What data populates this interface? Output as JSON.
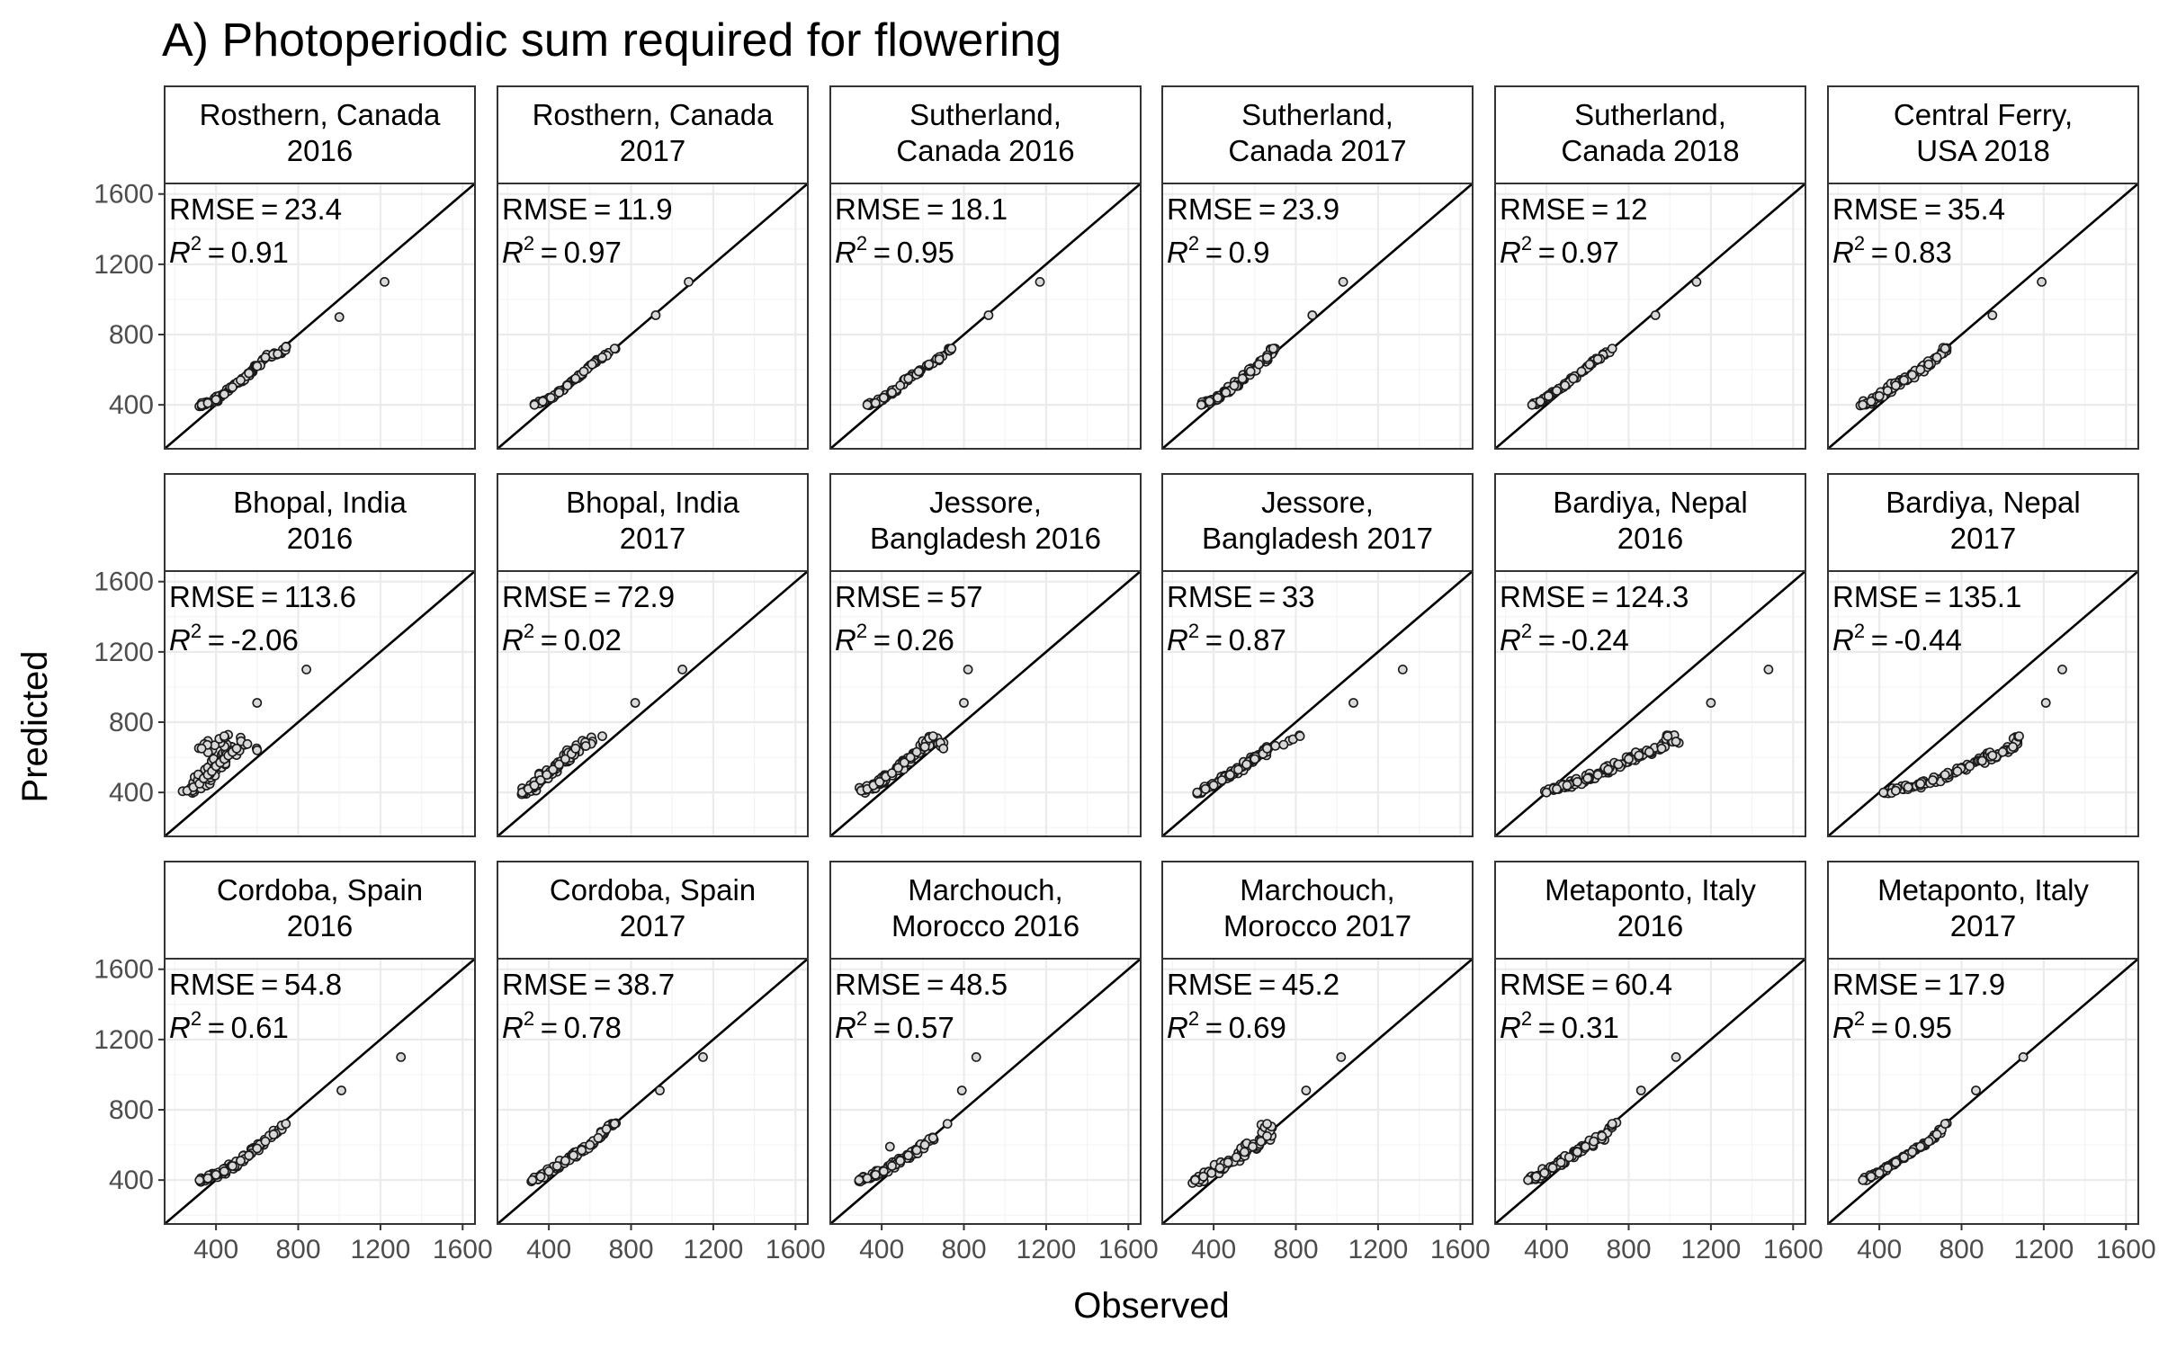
{
  "chart_data": {
    "type": "scatter",
    "title": "A) Photoperiodic sum required for flowering",
    "xlabel": "Observed",
    "ylabel": "Predicted",
    "xlim": [
      150,
      1660
    ],
    "ylim": [
      150,
      1660
    ],
    "x_ticks": [
      400,
      800,
      1200,
      1600
    ],
    "y_ticks": [
      400,
      800,
      1200,
      1600
    ],
    "x_tick_labels": [
      "400",
      "800",
      "1200",
      "1600"
    ],
    "y_tick_labels": [
      "400",
      "800",
      "1200",
      "1600"
    ],
    "rmse_label": "RMSE",
    "r2_label": "R",
    "r2_superscript": "2",
    "grid": true,
    "reference_line": "y = x",
    "panels": [
      {
        "strip": [
          "Rosthern, Canada",
          "2016"
        ],
        "rmse": "23.4",
        "r2": "0.91",
        "spread": 25,
        "points": [
          [
            330,
            400
          ],
          [
            360,
            410
          ],
          [
            400,
            430
          ],
          [
            440,
            460
          ],
          [
            480,
            500
          ],
          [
            520,
            540
          ],
          [
            560,
            580
          ],
          [
            600,
            620
          ],
          [
            640,
            670
          ],
          [
            700,
            690
          ],
          [
            740,
            730
          ],
          [
            1000,
            900
          ],
          [
            1220,
            1100
          ]
        ]
      },
      {
        "strip": [
          "Rosthern, Canada",
          "2017"
        ],
        "rmse": "11.9",
        "r2": "0.97",
        "spread": 14,
        "points": [
          [
            330,
            400
          ],
          [
            370,
            420
          ],
          [
            410,
            440
          ],
          [
            450,
            470
          ],
          [
            490,
            510
          ],
          [
            530,
            550
          ],
          [
            570,
            590
          ],
          [
            610,
            630
          ],
          [
            660,
            670
          ],
          [
            720,
            720
          ],
          [
            920,
            910
          ],
          [
            1080,
            1100
          ]
        ]
      },
      {
        "strip": [
          "Sutherland,",
          "Canada 2016"
        ],
        "rmse": "18.1",
        "r2": "0.95",
        "spread": 20,
        "points": [
          [
            330,
            400
          ],
          [
            370,
            410
          ],
          [
            410,
            440
          ],
          [
            450,
            470
          ],
          [
            490,
            510
          ],
          [
            530,
            550
          ],
          [
            580,
            590
          ],
          [
            630,
            630
          ],
          [
            680,
            660
          ],
          [
            740,
            720
          ],
          [
            920,
            910
          ],
          [
            1170,
            1100
          ]
        ]
      },
      {
        "strip": [
          "Sutherland,",
          "Canada 2017"
        ],
        "rmse": "23.9",
        "r2": "0.9",
        "spread": 30,
        "points": [
          [
            340,
            400
          ],
          [
            380,
            420
          ],
          [
            420,
            440
          ],
          [
            460,
            470
          ],
          [
            500,
            510
          ],
          [
            540,
            550
          ],
          [
            580,
            590
          ],
          [
            620,
            630
          ],
          [
            660,
            670
          ],
          [
            690,
            720
          ],
          [
            880,
            910
          ],
          [
            1030,
            1100
          ]
        ]
      },
      {
        "strip": [
          "Sutherland,",
          "Canada 2018"
        ],
        "rmse": "12",
        "r2": "0.97",
        "spread": 18,
        "points": [
          [
            330,
            400
          ],
          [
            370,
            420
          ],
          [
            410,
            450
          ],
          [
            450,
            480
          ],
          [
            490,
            510
          ],
          [
            530,
            550
          ],
          [
            570,
            590
          ],
          [
            610,
            630
          ],
          [
            650,
            660
          ],
          [
            720,
            720
          ],
          [
            930,
            910
          ],
          [
            1130,
            1100
          ]
        ]
      },
      {
        "strip": [
          "Central Ferry,",
          "USA 2018"
        ],
        "rmse": "35.4",
        "r2": "0.83",
        "spread": 40,
        "points": [
          [
            320,
            400
          ],
          [
            360,
            420
          ],
          [
            400,
            450
          ],
          [
            440,
            480
          ],
          [
            480,
            510
          ],
          [
            520,
            540
          ],
          [
            560,
            570
          ],
          [
            600,
            600
          ],
          [
            640,
            630
          ],
          [
            680,
            670
          ],
          [
            720,
            720
          ],
          [
            950,
            910
          ],
          [
            1190,
            1100
          ]
        ]
      },
      {
        "strip": [
          "Bhopal, India",
          "2016"
        ],
        "rmse": "113.6",
        "r2": "-2.06",
        "spread": 70,
        "points": [
          [
            260,
            410
          ],
          [
            290,
            430
          ],
          [
            320,
            450
          ],
          [
            340,
            480
          ],
          [
            360,
            500
          ],
          [
            380,
            520
          ],
          [
            400,
            550
          ],
          [
            420,
            570
          ],
          [
            440,
            590
          ],
          [
            460,
            610
          ],
          [
            480,
            630
          ],
          [
            500,
            650
          ],
          [
            330,
            650
          ],
          [
            440,
            720
          ],
          [
            600,
            640
          ],
          [
            600,
            910
          ],
          [
            840,
            1100
          ]
        ]
      },
      {
        "strip": [
          "Bhopal, India",
          "2017"
        ],
        "rmse": "72.9",
        "r2": "0.02",
        "spread": 55,
        "points": [
          [
            270,
            400
          ],
          [
            300,
            420
          ],
          [
            330,
            440
          ],
          [
            360,
            470
          ],
          [
            390,
            500
          ],
          [
            420,
            530
          ],
          [
            450,
            560
          ],
          [
            480,
            590
          ],
          [
            510,
            620
          ],
          [
            530,
            650
          ],
          [
            660,
            720
          ],
          [
            820,
            910
          ],
          [
            1050,
            1100
          ]
        ]
      },
      {
        "strip": [
          "Jessore,",
          "Bangladesh 2016"
        ],
        "rmse": "57",
        "r2": "0.26",
        "spread": 45,
        "points": [
          [
            300,
            410
          ],
          [
            330,
            420
          ],
          [
            360,
            440
          ],
          [
            390,
            460
          ],
          [
            420,
            490
          ],
          [
            450,
            510
          ],
          [
            480,
            540
          ],
          [
            510,
            570
          ],
          [
            540,
            600
          ],
          [
            570,
            630
          ],
          [
            610,
            660
          ],
          [
            650,
            720
          ],
          [
            700,
            650
          ],
          [
            800,
            910
          ],
          [
            820,
            1100
          ]
        ]
      },
      {
        "strip": [
          "Jessore,",
          "Bangladesh 2017"
        ],
        "rmse": "33",
        "r2": "0.87",
        "spread": 35,
        "points": [
          [
            320,
            400
          ],
          [
            360,
            420
          ],
          [
            400,
            440
          ],
          [
            440,
            470
          ],
          [
            480,
            500
          ],
          [
            520,
            530
          ],
          [
            560,
            560
          ],
          [
            600,
            590
          ],
          [
            640,
            620
          ],
          [
            660,
            650
          ],
          [
            820,
            720
          ],
          [
            1080,
            910
          ],
          [
            1320,
            1100
          ]
        ]
      },
      {
        "strip": [
          "Bardiya, Nepal",
          "2016"
        ],
        "rmse": "124.3",
        "r2": "-0.24",
        "spread": 45,
        "points": [
          [
            400,
            400
          ],
          [
            450,
            420
          ],
          [
            500,
            440
          ],
          [
            550,
            460
          ],
          [
            600,
            480
          ],
          [
            650,
            500
          ],
          [
            700,
            530
          ],
          [
            750,
            560
          ],
          [
            800,
            590
          ],
          [
            850,
            610
          ],
          [
            900,
            630
          ],
          [
            960,
            650
          ],
          [
            990,
            720
          ],
          [
            1030,
            690
          ],
          [
            1200,
            910
          ],
          [
            1480,
            1100
          ]
        ]
      },
      {
        "strip": [
          "Bardiya, Nepal",
          "2017"
        ],
        "rmse": "135.1",
        "r2": "-0.44",
        "spread": 45,
        "points": [
          [
            420,
            400
          ],
          [
            480,
            410
          ],
          [
            540,
            430
          ],
          [
            600,
            450
          ],
          [
            660,
            470
          ],
          [
            720,
            500
          ],
          [
            780,
            520
          ],
          [
            840,
            550
          ],
          [
            900,
            580
          ],
          [
            950,
            610
          ],
          [
            1000,
            630
          ],
          [
            1050,
            660
          ],
          [
            1080,
            720
          ],
          [
            1210,
            910
          ],
          [
            1290,
            1100
          ]
        ]
      },
      {
        "strip": [
          "Cordoba, Spain",
          "2016"
        ],
        "rmse": "54.8",
        "r2": "0.61",
        "spread": 30,
        "points": [
          [
            320,
            400
          ],
          [
            360,
            410
          ],
          [
            400,
            430
          ],
          [
            440,
            450
          ],
          [
            480,
            480
          ],
          [
            520,
            510
          ],
          [
            560,
            540
          ],
          [
            600,
            580
          ],
          [
            640,
            620
          ],
          [
            680,
            660
          ],
          [
            740,
            720
          ],
          [
            1010,
            910
          ],
          [
            1300,
            1100
          ]
        ]
      },
      {
        "strip": [
          "Cordoba, Spain",
          "2017"
        ],
        "rmse": "38.7",
        "r2": "0.78",
        "spread": 30,
        "points": [
          [
            320,
            400
          ],
          [
            360,
            420
          ],
          [
            400,
            450
          ],
          [
            440,
            480
          ],
          [
            480,
            510
          ],
          [
            520,
            540
          ],
          [
            560,
            570
          ],
          [
            600,
            600
          ],
          [
            640,
            640
          ],
          [
            680,
            690
          ],
          [
            720,
            720
          ],
          [
            940,
            910
          ],
          [
            1150,
            1100
          ]
        ]
      },
      {
        "strip": [
          "Marchouch,",
          "Morocco 2016"
        ],
        "rmse": "48.5",
        "r2": "0.57",
        "spread": 35,
        "points": [
          [
            290,
            400
          ],
          [
            330,
            410
          ],
          [
            370,
            430
          ],
          [
            410,
            450
          ],
          [
            450,
            480
          ],
          [
            490,
            510
          ],
          [
            530,
            540
          ],
          [
            570,
            570
          ],
          [
            610,
            600
          ],
          [
            650,
            640
          ],
          [
            440,
            590
          ],
          [
            720,
            720
          ],
          [
            790,
            910
          ],
          [
            860,
            1100
          ]
        ]
      },
      {
        "strip": [
          "Marchouch,",
          "Morocco 2017"
        ],
        "rmse": "45.2",
        "r2": "0.69",
        "spread": 60,
        "points": [
          [
            310,
            400
          ],
          [
            350,
            420
          ],
          [
            390,
            440
          ],
          [
            430,
            470
          ],
          [
            470,
            500
          ],
          [
            510,
            530
          ],
          [
            550,
            560
          ],
          [
            590,
            590
          ],
          [
            630,
            620
          ],
          [
            660,
            650
          ],
          [
            660,
            720
          ],
          [
            850,
            910
          ],
          [
            1020,
            1100
          ]
        ]
      },
      {
        "strip": [
          "Metaponto, Italy",
          "2016"
        ],
        "rmse": "60.4",
        "r2": "0.31",
        "spread": 45,
        "points": [
          [
            310,
            400
          ],
          [
            350,
            420
          ],
          [
            390,
            440
          ],
          [
            430,
            470
          ],
          [
            470,
            500
          ],
          [
            510,
            530
          ],
          [
            550,
            560
          ],
          [
            590,
            590
          ],
          [
            630,
            620
          ],
          [
            670,
            650
          ],
          [
            720,
            720
          ],
          [
            860,
            910
          ],
          [
            1030,
            1100
          ]
        ]
      },
      {
        "strip": [
          "Metaponto, Italy",
          "2017"
        ],
        "rmse": "17.9",
        "r2": "0.95",
        "spread": 20,
        "points": [
          [
            320,
            400
          ],
          [
            360,
            420
          ],
          [
            400,
            440
          ],
          [
            440,
            470
          ],
          [
            480,
            500
          ],
          [
            520,
            530
          ],
          [
            560,
            560
          ],
          [
            600,
            590
          ],
          [
            640,
            620
          ],
          [
            680,
            660
          ],
          [
            720,
            720
          ],
          [
            870,
            910
          ],
          [
            1100,
            1100
          ]
        ]
      }
    ]
  }
}
